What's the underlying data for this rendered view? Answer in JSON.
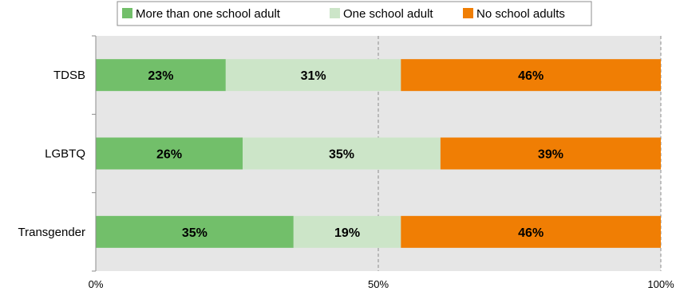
{
  "chart_data": {
    "type": "bar",
    "orientation": "horizontal",
    "stacked": true,
    "percent_stacked": true,
    "categories": [
      "TDSB",
      "LGBTQ",
      "Transgender"
    ],
    "series": [
      {
        "name": "More than one school adult",
        "values": [
          23,
          26,
          35
        ],
        "color": "#72bf6a"
      },
      {
        "name": "One school adult",
        "values": [
          31,
          35,
          19
        ],
        "color": "#cce5c8"
      },
      {
        "name": "No school adults",
        "values": [
          46,
          39,
          46
        ],
        "color": "#f07e04"
      }
    ],
    "data_labels": [
      [
        "23%",
        "31%",
        "46%"
      ],
      [
        "26%",
        "35%",
        "39%"
      ],
      [
        "35%",
        "19%",
        "46%"
      ]
    ],
    "x_ticks": [
      "0%",
      "50%",
      "100%"
    ],
    "xlim": [
      0,
      100
    ],
    "legend": "top",
    "grid": "vertical dashed at 50% and 100%",
    "plot_background": "#e6e6e6"
  }
}
